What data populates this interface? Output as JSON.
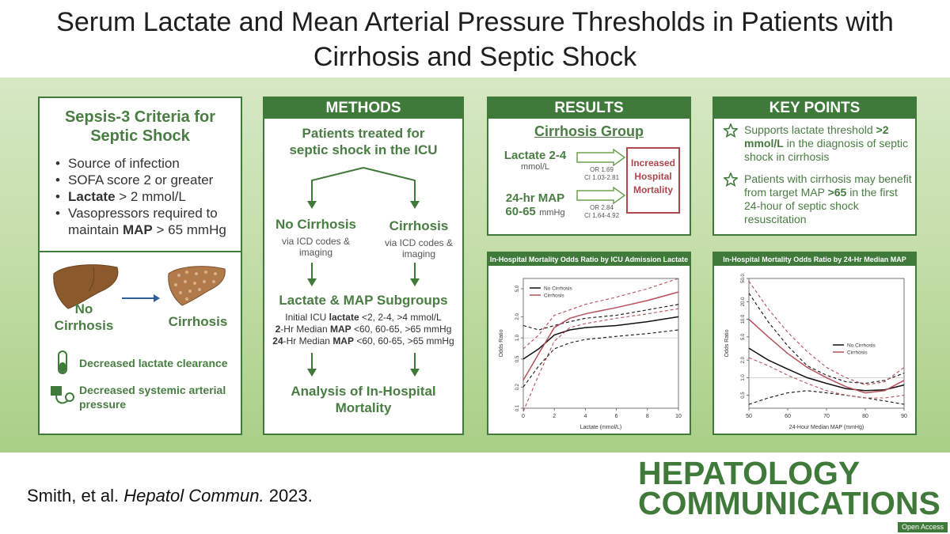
{
  "title": {
    "line1": "Serum Lactate and Mean Arterial Pressure Thresholds in Patients with",
    "line2": "Cirrhosis and Septic Shock"
  },
  "colors": {
    "brand_green": "#3f7a3a",
    "text_green": "#4a7d43",
    "accent_red": "#b0474e"
  },
  "sepsis": {
    "title": "Sepsis-3 Criteria for Septic Shock",
    "criteria": [
      {
        "pre": "",
        "bold": "",
        "post": "Source of infection"
      },
      {
        "pre": "",
        "bold": "",
        "post": "SOFA score 2 or greater"
      },
      {
        "pre": "",
        "bold": "Lactate",
        "post": " > 2 mmol/L"
      },
      {
        "pre": "Vasopressors required to maintain ",
        "bold": "MAP",
        "post": " > 65 mmHg"
      }
    ],
    "liver_no": "No Cirrhosis",
    "liver_yes": "Cirrhosis",
    "feature1": "Decreased lactate clearance",
    "feature2": "Decreased systemic arterial pressure"
  },
  "methods": {
    "header": "METHODS",
    "patients": "Patients treated for septic shock in the ICU",
    "no_cirrhosis": "No Cirrhosis",
    "cirrhosis": "Cirrhosis",
    "via": "via ICD codes & imaging",
    "subgroups": "Lactate & MAP Subgroups",
    "detail1_pre": "Initial ICU ",
    "detail1_bold": "lactate",
    "detail1_post": " <2, 2-4, >4 mmol/L",
    "detail2_bold": "2",
    "detail2_mid": "-Hr Median ",
    "detail2_bold2": "MAP",
    "detail2_post": " <60, 60-65, >65 mmHg",
    "detail3_bold": "24",
    "detail3_mid": "-Hr Median ",
    "detail3_bold2": "MAP",
    "detail3_post": " <60, 60-65, >65 mmHg",
    "analysis": "Analysis of In-Hospital Mortality"
  },
  "results": {
    "header": "RESULTS",
    "group": "Cirrhosis Group",
    "lactate_label": "Lactate 2-4",
    "lactate_unit": "mmol/L",
    "lactate_or": "OR 1.69",
    "lactate_ci": "CI 1.03-2.81",
    "map_label": "24-hr MAP",
    "map_range": "60-65",
    "map_unit": "mmHg",
    "map_or": "OR 2.84",
    "map_ci": "CI 1.64-4.92",
    "outcome": "Increased Hospital Mortality"
  },
  "keypoints": {
    "header": "KEY POINTS",
    "k1_pre": "Supports lactate threshold ",
    "k1_bold": ">2 mmol/L",
    "k1_post": " in the diagnosis of septic shock in cirrhosis",
    "k2_pre": "Patients with cirrhosis may benefit from target MAP ",
    "k2_bold": ">65",
    "k2_post": " in the first 24-hour of septic shock resuscitation"
  },
  "chart_data": [
    {
      "type": "line",
      "title": "In-Hospital Mortality Odds Ratio by ICU Admission Lactate",
      "xlabel": "Lactate (mmol/L)",
      "ylabel": "Odds Ratio",
      "xlim": [
        0,
        10
      ],
      "ylim_log": [
        0.1,
        7.0
      ],
      "xticks": [
        "0",
        "2",
        "4",
        "6",
        "8",
        "10"
      ],
      "yticks": [
        "0.1",
        "0.2",
        "0.5",
        "1.0",
        "2.0",
        "5.0"
      ],
      "legend": [
        "No Cirrhosis",
        "Cirrhosis"
      ],
      "legend_position": "top-left",
      "series": [
        {
          "name": "No Cirrhosis",
          "color": "#111111",
          "x": [
            0,
            1,
            2,
            3,
            4,
            6,
            8,
            10
          ],
          "y": [
            0.5,
            0.7,
            1.1,
            1.3,
            1.4,
            1.5,
            1.7,
            2.0
          ],
          "lower": [
            0.2,
            0.4,
            0.7,
            0.85,
            0.95,
            1.05,
            1.15,
            1.3
          ],
          "upper": [
            1.5,
            1.3,
            1.5,
            1.7,
            1.9,
            2.1,
            2.5,
            3.0
          ]
        },
        {
          "name": "Cirrhosis",
          "color": "#b5505a",
          "x": [
            0,
            1,
            2,
            3,
            4,
            6,
            8,
            10
          ],
          "y": [
            0.25,
            0.6,
            1.4,
            1.9,
            2.2,
            2.7,
            3.4,
            4.5
          ],
          "lower": [
            0.09,
            0.3,
            0.9,
            1.4,
            1.6,
            1.9,
            2.2,
            2.6
          ],
          "upper": [
            0.7,
            1.1,
            2.1,
            2.5,
            3.0,
            3.8,
            5.0,
            7.0
          ]
        }
      ]
    },
    {
      "type": "line",
      "title": "In-Hospital Mortality Odds Ratio by 24-Hr Median MAP",
      "xlabel": "24-Hour Median MAP (mmHg)",
      "ylabel": "Odds Ratio",
      "xlim": [
        50,
        90
      ],
      "ylim_log": [
        0.3,
        50
      ],
      "xticks": [
        "50",
        "60",
        "70",
        "80",
        "90"
      ],
      "yticks": [
        "0.5",
        "1.0",
        "2.0",
        "5.0",
        "10.0",
        "20.0",
        "50.0"
      ],
      "legend": [
        "No Cirrhosis",
        "Cirrhosis"
      ],
      "legend_position": "right",
      "series": [
        {
          "name": "No Cirrhosis",
          "color": "#111111",
          "x": [
            50,
            55,
            60,
            65,
            70,
            75,
            80,
            85,
            90
          ],
          "y": [
            3.2,
            2.0,
            1.4,
            1.0,
            0.8,
            0.65,
            0.6,
            0.62,
            0.75
          ],
          "lower": [
            0.35,
            0.45,
            0.55,
            0.6,
            0.55,
            0.5,
            0.45,
            0.4,
            0.35
          ],
          "upper": [
            28,
            9,
            3.5,
            1.6,
            1.1,
            0.85,
            0.8,
            0.9,
            1.2
          ]
        },
        {
          "name": "Cirrhosis",
          "color": "#b5505a",
          "x": [
            50,
            55,
            60,
            65,
            70,
            75,
            80,
            85,
            90
          ],
          "y": [
            10,
            5,
            2.6,
            1.5,
            1.0,
            0.7,
            0.55,
            0.6,
            0.9
          ],
          "lower": [
            2.2,
            1.6,
            1.1,
            0.8,
            0.6,
            0.5,
            0.45,
            0.45,
            0.5
          ],
          "upper": [
            45,
            15,
            6,
            2.8,
            1.5,
            1.0,
            0.75,
            0.85,
            1.5
          ]
        }
      ]
    }
  ],
  "citation": {
    "authors": "Smith, et al. ",
    "journal": "Hepatol Commun.",
    "year": " 2023."
  },
  "logo": {
    "line1": "HEPATOLOGY",
    "line2": "COMMUNICATIONS",
    "badge": "Open Access"
  }
}
